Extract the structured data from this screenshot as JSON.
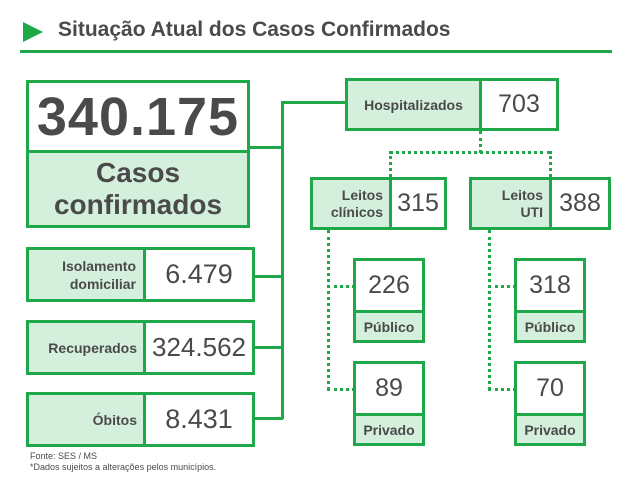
{
  "header": {
    "title": "Situação Atual dos Casos Confirmados"
  },
  "confirmed": {
    "value": "340.175",
    "label": "Casos confirmados"
  },
  "isolation": {
    "label": "Isolamento domiciliar",
    "value": "6.479"
  },
  "recovered": {
    "label": "Recuperados",
    "value": "324.562"
  },
  "deaths": {
    "label": "Óbitos",
    "value": "8.431"
  },
  "hospitalized": {
    "label": "Hospitalizados",
    "value": "703"
  },
  "clinical_beds": {
    "label": "Leitos clínicos",
    "value": "315",
    "public": {
      "value": "226",
      "label": "Público"
    },
    "private": {
      "value": "89",
      "label": "Privado"
    }
  },
  "icu_beds": {
    "label": "Leitos UTI",
    "value": "388",
    "public": {
      "value": "318",
      "label": "Público"
    },
    "private": {
      "value": "70",
      "label": "Privado"
    }
  },
  "footer": {
    "source": "Fonte: SES / MS",
    "note": "*Dados sujeitos a alterações pelos municípios."
  },
  "colors": {
    "accent": "#1ea84a",
    "fill": "#d4efdc",
    "text": "#4a4a4a"
  }
}
